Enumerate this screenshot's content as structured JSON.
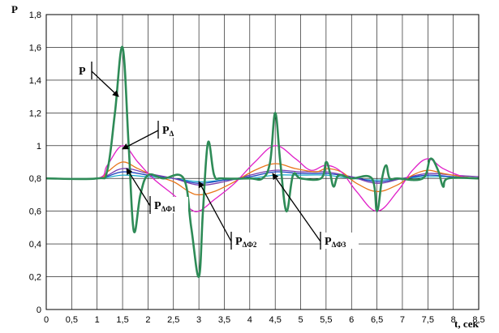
{
  "chart_data": {
    "type": "line",
    "title": "",
    "ylabel": "P",
    "xlabel": "t, сек",
    "xlim": [
      0,
      8.5
    ],
    "ylim": [
      0,
      1.8
    ],
    "grid": true,
    "x_ticks": [
      "0",
      "0,5",
      "1",
      "1,5",
      "2",
      "2,5",
      "3",
      "3,5",
      "4",
      "4,5",
      "5",
      "5,5",
      "6",
      "6,5",
      "7",
      "7,5",
      "8",
      "8,5"
    ],
    "y_ticks": [
      "0",
      "0,2",
      "0,4",
      "0,6",
      "0,8",
      "1",
      "1,2",
      "1,4",
      "1,6",
      "1,8"
    ],
    "series": [
      {
        "name": "",
        "color": "#2e8b57",
        "points": [
          [
            0,
            0.8
          ],
          [
            1,
            0.8
          ],
          [
            1.2,
            0.85
          ],
          [
            1.35,
            1.2
          ],
          [
            1.5,
            1.6
          ],
          [
            1.62,
            1.0
          ],
          [
            1.72,
            0.48
          ],
          [
            1.85,
            0.7
          ],
          [
            2.0,
            0.82
          ],
          [
            2.3,
            0.8
          ],
          [
            2.7,
            0.8
          ],
          [
            2.85,
            0.5
          ],
          [
            3.0,
            0.2
          ],
          [
            3.08,
            0.6
          ],
          [
            3.18,
            1.02
          ],
          [
            3.3,
            0.82
          ],
          [
            3.45,
            0.8
          ],
          [
            4.0,
            0.8
          ],
          [
            4.25,
            0.8
          ],
          [
            4.4,
            0.9
          ],
          [
            4.5,
            1.2
          ],
          [
            4.6,
            0.9
          ],
          [
            4.72,
            0.6
          ],
          [
            4.85,
            0.82
          ],
          [
            5.0,
            0.8
          ],
          [
            5.4,
            0.8
          ],
          [
            5.5,
            0.9
          ],
          [
            5.58,
            0.83
          ],
          [
            5.65,
            0.75
          ],
          [
            5.75,
            0.82
          ],
          [
            6.0,
            0.8
          ],
          [
            6.4,
            0.8
          ],
          [
            6.5,
            0.6
          ],
          [
            6.6,
            0.8
          ],
          [
            6.68,
            0.88
          ],
          [
            6.75,
            0.8
          ],
          [
            6.9,
            0.8
          ],
          [
            7.4,
            0.8
          ],
          [
            7.55,
            0.92
          ],
          [
            7.7,
            0.85
          ],
          [
            7.8,
            0.75
          ],
          [
            7.9,
            0.8
          ],
          [
            8.5,
            0.8
          ]
        ]
      },
      {
        "name": "",
        "color": "#e020c8",
        "points": [
          [
            0,
            0.8
          ],
          [
            1.0,
            0.8
          ],
          [
            1.2,
            0.88
          ],
          [
            1.5,
            1.0
          ],
          [
            1.8,
            0.9
          ],
          [
            2.1,
            0.8
          ],
          [
            2.5,
            0.7
          ],
          [
            2.8,
            0.62
          ],
          [
            3.0,
            0.6
          ],
          [
            3.3,
            0.67
          ],
          [
            3.7,
            0.77
          ],
          [
            4.1,
            0.9
          ],
          [
            4.5,
            1.0
          ],
          [
            4.9,
            0.92
          ],
          [
            5.2,
            0.85
          ],
          [
            5.5,
            0.88
          ],
          [
            5.8,
            0.84
          ],
          [
            6.1,
            0.72
          ],
          [
            6.5,
            0.6
          ],
          [
            6.9,
            0.72
          ],
          [
            7.2,
            0.85
          ],
          [
            7.5,
            0.92
          ],
          [
            7.8,
            0.86
          ],
          [
            8.2,
            0.81
          ],
          [
            8.5,
            0.8
          ]
        ]
      },
      {
        "name": "",
        "color": "#e8761a",
        "points": [
          [
            0,
            0.8
          ],
          [
            1.0,
            0.8
          ],
          [
            1.2,
            0.84
          ],
          [
            1.5,
            0.9
          ],
          [
            1.8,
            0.86
          ],
          [
            2.1,
            0.82
          ],
          [
            2.5,
            0.78
          ],
          [
            2.8,
            0.72
          ],
          [
            3.0,
            0.7
          ],
          [
            3.3,
            0.72
          ],
          [
            3.7,
            0.78
          ],
          [
            4.1,
            0.85
          ],
          [
            4.5,
            0.89
          ],
          [
            4.9,
            0.86
          ],
          [
            5.3,
            0.84
          ],
          [
            5.5,
            0.86
          ],
          [
            5.8,
            0.84
          ],
          [
            6.1,
            0.77
          ],
          [
            6.5,
            0.72
          ],
          [
            6.9,
            0.76
          ],
          [
            7.2,
            0.82
          ],
          [
            7.5,
            0.85
          ],
          [
            7.8,
            0.83
          ],
          [
            8.2,
            0.81
          ],
          [
            8.5,
            0.8
          ]
        ]
      },
      {
        "name": "",
        "color": "#7a3fb0",
        "points": [
          [
            0,
            0.8
          ],
          [
            1.0,
            0.8
          ],
          [
            1.5,
            0.86
          ],
          [
            2.0,
            0.83
          ],
          [
            2.5,
            0.8
          ],
          [
            3.0,
            0.76
          ],
          [
            3.5,
            0.78
          ],
          [
            4.0,
            0.82
          ],
          [
            4.5,
            0.85
          ],
          [
            5.0,
            0.84
          ],
          [
            5.5,
            0.84
          ],
          [
            6.0,
            0.81
          ],
          [
            6.5,
            0.77
          ],
          [
            7.0,
            0.8
          ],
          [
            7.5,
            0.83
          ],
          [
            8.0,
            0.82
          ],
          [
            8.5,
            0.81
          ]
        ]
      },
      {
        "name": "",
        "color": "#1a3fbf",
        "points": [
          [
            0,
            0.8
          ],
          [
            1.0,
            0.8
          ],
          [
            1.5,
            0.84
          ],
          [
            2.0,
            0.82
          ],
          [
            2.5,
            0.8
          ],
          [
            3.0,
            0.77
          ],
          [
            3.5,
            0.79
          ],
          [
            4.0,
            0.81
          ],
          [
            4.5,
            0.84
          ],
          [
            5.0,
            0.83
          ],
          [
            5.5,
            0.83
          ],
          [
            6.0,
            0.81
          ],
          [
            6.5,
            0.78
          ],
          [
            7.0,
            0.8
          ],
          [
            7.5,
            0.82
          ],
          [
            8.0,
            0.81
          ],
          [
            8.5,
            0.8
          ]
        ]
      },
      {
        "name": "",
        "color": "#12a8c8",
        "points": [
          [
            0,
            0.8
          ],
          [
            1.0,
            0.8
          ],
          [
            1.5,
            0.82
          ],
          [
            2.0,
            0.81
          ],
          [
            2.5,
            0.8
          ],
          [
            3.0,
            0.78
          ],
          [
            3.5,
            0.79
          ],
          [
            4.0,
            0.8
          ],
          [
            4.5,
            0.82
          ],
          [
            5.0,
            0.82
          ],
          [
            5.5,
            0.82
          ],
          [
            6.0,
            0.8
          ],
          [
            6.5,
            0.79
          ],
          [
            7.0,
            0.8
          ],
          [
            7.5,
            0.81
          ],
          [
            8.0,
            0.81
          ],
          [
            8.5,
            0.8
          ]
        ]
      }
    ],
    "annotations": [
      {
        "label": "P",
        "sub": "",
        "target": [
          1.42,
          1.3
        ]
      },
      {
        "label": "P",
        "sub": "Δ",
        "target": [
          1.5,
          0.98
        ]
      },
      {
        "label": "P",
        "sub": "ΔФ1",
        "target": [
          1.58,
          0.86
        ]
      },
      {
        "label": "P",
        "sub": "ΔФ2",
        "target": [
          3.0,
          0.78
        ]
      },
      {
        "label": "P",
        "sub": "ΔФ3",
        "target": [
          4.45,
          0.83
        ]
      }
    ]
  }
}
